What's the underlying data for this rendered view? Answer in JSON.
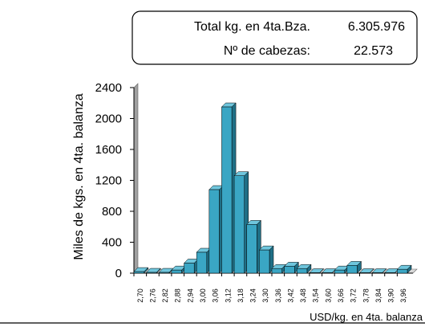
{
  "summary": [
    {
      "label": "Total kg. en 4ta.Bza.",
      "value": "6.305.976"
    },
    {
      "label": "Nº de cabezas:",
      "value": "22.573"
    }
  ],
  "chart_data": {
    "type": "bar",
    "y_label": "Miles de kgs. en 4ta. balanza",
    "x_label": "USD/kg. en 4ta. balanza",
    "categories": [
      "2,70",
      "2,76",
      "2,82",
      "2,88",
      "2,94",
      "3,00",
      "3,06",
      "3,12",
      "3,18",
      "3,24",
      "3,30",
      "3,36",
      "3,42",
      "3,48",
      "3,54",
      "3,60",
      "3,66",
      "3,72",
      "3,78",
      "3,84",
      "3,90",
      "3,96"
    ],
    "values": [
      20,
      10,
      10,
      40,
      130,
      270,
      1080,
      2150,
      1260,
      630,
      300,
      60,
      90,
      60,
      5,
      5,
      40,
      100,
      5,
      5,
      5,
      50
    ],
    "color": "#3aa6c4",
    "ylim": [
      0,
      2400
    ],
    "yticks": [
      0,
      400,
      800,
      1200,
      1600,
      2000,
      2400
    ],
    "grid": false
  }
}
